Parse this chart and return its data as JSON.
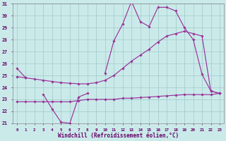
{
  "background_color": "#caeaea",
  "grid_color": "#a0c8c8",
  "line_color": "#993399",
  "xlabel": "Windchill (Refroidissement éolien,°C)",
  "hours": [
    0,
    1,
    2,
    3,
    4,
    5,
    6,
    7,
    8,
    9,
    10,
    11,
    12,
    13,
    14,
    15,
    16,
    17,
    18,
    19,
    20,
    21,
    22,
    23
  ],
  "line_jagged": [
    25.6,
    24.8,
    null,
    23.4,
    22.2,
    21.1,
    21.0,
    23.2,
    23.5,
    null,
    25.2,
    27.9,
    29.3,
    31.2,
    29.5,
    29.1,
    30.7,
    30.7,
    30.4,
    29.0,
    28.0,
    25.1,
    23.7,
    23.5
  ],
  "line_upper_x": [
    0,
    1,
    2,
    3,
    4,
    5,
    6,
    7,
    8,
    9,
    10,
    11,
    12,
    13,
    14,
    15,
    16,
    17,
    18,
    19,
    20,
    21,
    22,
    23
  ],
  "line_upper_y": [
    24.9,
    24.8,
    24.7,
    24.6,
    24.5,
    24.4,
    24.35,
    24.3,
    24.3,
    24.4,
    24.6,
    25.0,
    25.6,
    26.2,
    26.7,
    27.2,
    27.8,
    28.3,
    28.5,
    28.7,
    28.5,
    28.3,
    23.7,
    23.5
  ],
  "line_lower_x": [
    0,
    1,
    2,
    3,
    4,
    5,
    6,
    7,
    8,
    9,
    10,
    11,
    12,
    13,
    14,
    15,
    16,
    17,
    18,
    19,
    20,
    21,
    22,
    23
  ],
  "line_lower_y": [
    22.8,
    22.8,
    22.8,
    22.8,
    22.8,
    22.8,
    22.8,
    22.9,
    23.0,
    23.0,
    23.0,
    23.0,
    23.1,
    23.1,
    23.15,
    23.2,
    23.25,
    23.3,
    23.35,
    23.4,
    23.4,
    23.4,
    23.4,
    23.5
  ],
  "ylim_min": 21,
  "ylim_max": 31,
  "yticks": [
    21,
    22,
    23,
    24,
    25,
    26,
    27,
    28,
    29,
    30,
    31
  ]
}
